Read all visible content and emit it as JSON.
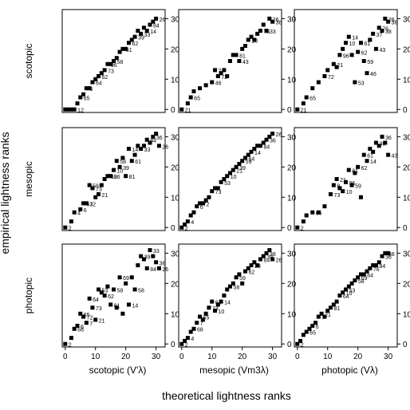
{
  "figure": {
    "ylabel": "empirical lightness ranks",
    "xlabel": "theoretical lightness ranks",
    "row_labels": [
      "scotopic",
      "mesopic",
      "photopic"
    ],
    "col_labels": [
      "scotopic (V'λ)",
      "mesopic (Vm3λ)",
      "photopic (Vλ)"
    ],
    "x_ticks": [
      0,
      10,
      20,
      30
    ],
    "y_ticks": [
      0,
      10,
      20,
      30
    ]
  },
  "chart_data": [
    {
      "type": "scatter",
      "row": "scotopic",
      "col": "scotopic (V'λ)",
      "xlim": [
        -1,
        33
      ],
      "ylim": [
        -1,
        33
      ],
      "grid": false,
      "points": [
        [
          0,
          0,
          ""
        ],
        [
          1,
          0,
          ""
        ],
        [
          2,
          0,
          ""
        ],
        [
          3,
          0,
          "12"
        ],
        [
          4,
          2,
          ""
        ],
        [
          5,
          4,
          "65"
        ],
        [
          6,
          5,
          ""
        ],
        [
          7,
          7,
          "6"
        ],
        [
          8,
          7,
          ""
        ],
        [
          9,
          9,
          "64"
        ],
        [
          10,
          10,
          ""
        ],
        [
          11,
          11,
          "62"
        ],
        [
          12,
          12,
          ""
        ],
        [
          13,
          13,
          "73"
        ],
        [
          14,
          15,
          "96"
        ],
        [
          15,
          15,
          ""
        ],
        [
          16,
          16,
          "58"
        ],
        [
          17,
          17,
          ""
        ],
        [
          18,
          19,
          ""
        ],
        [
          19,
          20,
          "61"
        ],
        [
          20,
          20,
          ""
        ],
        [
          21,
          22,
          "62"
        ],
        [
          22,
          23,
          ""
        ],
        [
          23,
          24,
          "39"
        ],
        [
          24,
          26,
          ""
        ],
        [
          25,
          25,
          "33"
        ],
        [
          26,
          27,
          ""
        ],
        [
          27,
          26,
          "14"
        ],
        [
          28,
          28,
          "84"
        ],
        [
          29,
          29,
          ""
        ],
        [
          30,
          30,
          "26"
        ]
      ]
    },
    {
      "type": "scatter",
      "row": "scotopic",
      "col": "mesopic (Vm3λ)",
      "xlim": [
        -1,
        33
      ],
      "ylim": [
        -1,
        33
      ],
      "grid": false,
      "points": [
        [
          0,
          0,
          "21"
        ],
        [
          2,
          2,
          ""
        ],
        [
          3,
          4,
          "65"
        ],
        [
          4,
          6,
          ""
        ],
        [
          6,
          7,
          ""
        ],
        [
          8,
          8,
          ""
        ],
        [
          10,
          9,
          "46"
        ],
        [
          11,
          13,
          "7"
        ],
        [
          12,
          11,
          "72"
        ],
        [
          13,
          12,
          ""
        ],
        [
          14,
          13,
          ""
        ],
        [
          15,
          11,
          ""
        ],
        [
          16,
          16,
          ""
        ],
        [
          17,
          18,
          ""
        ],
        [
          18,
          18,
          "81"
        ],
        [
          19,
          16,
          "43"
        ],
        [
          20,
          20,
          ""
        ],
        [
          21,
          21,
          ""
        ],
        [
          22,
          23,
          "10"
        ],
        [
          23,
          24,
          ""
        ],
        [
          24,
          23,
          ""
        ],
        [
          25,
          25,
          ""
        ],
        [
          26,
          26,
          "76"
        ],
        [
          27,
          28,
          ""
        ],
        [
          28,
          26,
          "33"
        ],
        [
          29,
          30,
          "26"
        ],
        [
          30,
          29,
          "36"
        ]
      ]
    },
    {
      "type": "scatter",
      "row": "scotopic",
      "col": "photopic (Vλ)",
      "xlim": [
        -1,
        33
      ],
      "ylim": [
        -1,
        33
      ],
      "grid": false,
      "points": [
        [
          0,
          0,
          "21"
        ],
        [
          2,
          2,
          ""
        ],
        [
          3,
          4,
          "65"
        ],
        [
          5,
          7,
          ""
        ],
        [
          7,
          9,
          ""
        ],
        [
          9,
          11,
          "72"
        ],
        [
          10,
          13,
          ""
        ],
        [
          12,
          15,
          "21"
        ],
        [
          13,
          14,
          ""
        ],
        [
          14,
          18,
          "96"
        ],
        [
          15,
          20,
          ""
        ],
        [
          16,
          22,
          "10"
        ],
        [
          17,
          24,
          "14"
        ],
        [
          18,
          18,
          ""
        ],
        [
          19,
          9,
          "53"
        ],
        [
          20,
          19,
          "62"
        ],
        [
          21,
          22,
          "61"
        ],
        [
          22,
          16,
          "59"
        ],
        [
          23,
          12,
          "46"
        ],
        [
          24,
          23,
          ""
        ],
        [
          25,
          25,
          "37"
        ],
        [
          26,
          20,
          "43"
        ],
        [
          27,
          27,
          "76"
        ],
        [
          28,
          26,
          "38"
        ],
        [
          29,
          30,
          "26"
        ],
        [
          30,
          29,
          "36"
        ]
      ]
    },
    {
      "type": "scatter",
      "row": "mesopic",
      "col": "scotopic (V'λ)",
      "xlim": [
        -1,
        33
      ],
      "ylim": [
        -1,
        33
      ],
      "grid": false,
      "points": [
        [
          0,
          0,
          "2"
        ],
        [
          2,
          2,
          ""
        ],
        [
          3,
          5,
          "4"
        ],
        [
          5,
          6,
          "6"
        ],
        [
          6,
          8,
          "53"
        ],
        [
          7,
          8,
          "72"
        ],
        [
          8,
          14,
          "58"
        ],
        [
          9,
          13,
          "73"
        ],
        [
          10,
          10,
          ""
        ],
        [
          11,
          11,
          "21"
        ],
        [
          12,
          14,
          ""
        ],
        [
          13,
          16,
          ""
        ],
        [
          14,
          17,
          "62"
        ],
        [
          15,
          17,
          "96"
        ],
        [
          16,
          19,
          "10"
        ],
        [
          17,
          22,
          "58"
        ],
        [
          18,
          20,
          "39"
        ],
        [
          19,
          23,
          ""
        ],
        [
          20,
          17,
          "81"
        ],
        [
          21,
          26,
          "14"
        ],
        [
          22,
          22,
          "61"
        ],
        [
          23,
          24,
          ""
        ],
        [
          24,
          27,
          ""
        ],
        [
          25,
          26,
          "33"
        ],
        [
          26,
          27,
          ""
        ],
        [
          27,
          29,
          "84"
        ],
        [
          28,
          28,
          ""
        ],
        [
          29,
          30,
          "36"
        ],
        [
          30,
          31,
          ""
        ],
        [
          31,
          27,
          "26"
        ]
      ]
    },
    {
      "type": "scatter",
      "row": "mesopic",
      "col": "mesopic (Vm3λ)",
      "xlim": [
        -1,
        33
      ],
      "ylim": [
        -1,
        33
      ],
      "grid": false,
      "points": [
        [
          0,
          0,
          "2"
        ],
        [
          1,
          1,
          ""
        ],
        [
          2,
          2,
          "4"
        ],
        [
          3,
          4,
          ""
        ],
        [
          4,
          5,
          ""
        ],
        [
          5,
          7,
          "6"
        ],
        [
          6,
          8,
          "72"
        ],
        [
          7,
          8,
          ""
        ],
        [
          8,
          9,
          ""
        ],
        [
          9,
          10,
          ""
        ],
        [
          10,
          12,
          "73"
        ],
        [
          11,
          13,
          ""
        ],
        [
          12,
          13,
          ""
        ],
        [
          13,
          15,
          "53"
        ],
        [
          14,
          16,
          ""
        ],
        [
          15,
          17,
          "10"
        ],
        [
          16,
          18,
          ""
        ],
        [
          17,
          19,
          "21"
        ],
        [
          18,
          20,
          "39"
        ],
        [
          19,
          21,
          ""
        ],
        [
          20,
          22,
          "59"
        ],
        [
          21,
          23,
          "64"
        ],
        [
          22,
          24,
          ""
        ],
        [
          23,
          25,
          "14"
        ],
        [
          24,
          26,
          ""
        ],
        [
          25,
          27,
          ""
        ],
        [
          26,
          27,
          "84"
        ],
        [
          27,
          28,
          ""
        ],
        [
          28,
          29,
          "36"
        ],
        [
          29,
          30,
          ""
        ],
        [
          30,
          31,
          "26"
        ]
      ]
    },
    {
      "type": "scatter",
      "row": "mesopic",
      "col": "photopic (Vλ)",
      "xlim": [
        -1,
        33
      ],
      "ylim": [
        -1,
        33
      ],
      "grid": false,
      "points": [
        [
          0,
          0,
          "2"
        ],
        [
          2,
          2,
          ""
        ],
        [
          3,
          4,
          ""
        ],
        [
          5,
          5,
          "65"
        ],
        [
          7,
          5,
          ""
        ],
        [
          9,
          7,
          ""
        ],
        [
          11,
          11,
          "73"
        ],
        [
          12,
          14,
          "8"
        ],
        [
          13,
          16,
          "21"
        ],
        [
          14,
          13,
          ""
        ],
        [
          15,
          12,
          "10"
        ],
        [
          16,
          15,
          "96"
        ],
        [
          17,
          19,
          "81"
        ],
        [
          18,
          14,
          "59"
        ],
        [
          19,
          18,
          ""
        ],
        [
          20,
          20,
          "62"
        ],
        [
          21,
          10,
          ""
        ],
        [
          22,
          24,
          "61"
        ],
        [
          23,
          22,
          "14"
        ],
        [
          24,
          26,
          ""
        ],
        [
          25,
          25,
          ""
        ],
        [
          26,
          28,
          "38"
        ],
        [
          27,
          27,
          ""
        ],
        [
          28,
          30,
          "36"
        ],
        [
          29,
          28,
          ""
        ],
        [
          30,
          24,
          "43"
        ]
      ]
    },
    {
      "type": "scatter",
      "row": "photopic",
      "col": "scotopic (V'λ)",
      "xlim": [
        -1,
        33
      ],
      "ylim": [
        -1,
        33
      ],
      "grid": false,
      "points": [
        [
          0,
          0,
          "2"
        ],
        [
          2,
          2,
          ""
        ],
        [
          3,
          5,
          "68"
        ],
        [
          4,
          6,
          "6"
        ],
        [
          5,
          10,
          "65"
        ],
        [
          6,
          9,
          "72"
        ],
        [
          7,
          7,
          "7"
        ],
        [
          8,
          15,
          "64"
        ],
        [
          9,
          12,
          "73"
        ],
        [
          10,
          8,
          "21"
        ],
        [
          11,
          18,
          "53"
        ],
        [
          12,
          17,
          ""
        ],
        [
          13,
          16,
          "62"
        ],
        [
          14,
          19,
          ""
        ],
        [
          15,
          13,
          "81"
        ],
        [
          16,
          18,
          "58"
        ],
        [
          17,
          12,
          ""
        ],
        [
          18,
          22,
          "69"
        ],
        [
          19,
          10,
          ""
        ],
        [
          20,
          20,
          ""
        ],
        [
          21,
          13,
          "14"
        ],
        [
          22,
          22,
          ""
        ],
        [
          23,
          18,
          "58"
        ],
        [
          24,
          26,
          ""
        ],
        [
          25,
          29,
          "39"
        ],
        [
          26,
          28,
          ""
        ],
        [
          27,
          25,
          "84"
        ],
        [
          28,
          31,
          "33"
        ],
        [
          29,
          29,
          ""
        ],
        [
          30,
          27,
          "36"
        ],
        [
          31,
          25,
          "26"
        ]
      ]
    },
    {
      "type": "scatter",
      "row": "photopic",
      "col": "mesopic (Vm3λ)",
      "xlim": [
        -1,
        33
      ],
      "ylim": [
        -1,
        33
      ],
      "grid": false,
      "points": [
        [
          0,
          0,
          "2"
        ],
        [
          1,
          1,
          ""
        ],
        [
          2,
          2,
          "4"
        ],
        [
          3,
          4,
          ""
        ],
        [
          4,
          5,
          "68"
        ],
        [
          5,
          7,
          "7"
        ],
        [
          6,
          9,
          "65"
        ],
        [
          7,
          8,
          ""
        ],
        [
          8,
          10,
          ""
        ],
        [
          9,
          12,
          "73"
        ],
        [
          10,
          14,
          "64"
        ],
        [
          11,
          11,
          "10"
        ],
        [
          12,
          13,
          ""
        ],
        [
          13,
          14,
          "14"
        ],
        [
          14,
          16,
          ""
        ],
        [
          15,
          18,
          ""
        ],
        [
          16,
          19,
          "58"
        ],
        [
          17,
          20,
          ""
        ],
        [
          18,
          22,
          "59"
        ],
        [
          19,
          23,
          ""
        ],
        [
          20,
          20,
          ""
        ],
        [
          21,
          24,
          "62"
        ],
        [
          22,
          25,
          ""
        ],
        [
          23,
          26,
          "33"
        ],
        [
          24,
          27,
          ""
        ],
        [
          25,
          26,
          ""
        ],
        [
          26,
          28,
          "84"
        ],
        [
          27,
          29,
          "39"
        ],
        [
          28,
          30,
          "38"
        ],
        [
          29,
          31,
          ""
        ],
        [
          30,
          28,
          "26"
        ]
      ]
    },
    {
      "type": "scatter",
      "row": "photopic",
      "col": "photopic (Vλ)",
      "xlim": [
        -1,
        33
      ],
      "ylim": [
        -1,
        33
      ],
      "grid": false,
      "points": [
        [
          0,
          0,
          "2"
        ],
        [
          1,
          1,
          ""
        ],
        [
          2,
          3,
          ""
        ],
        [
          3,
          4,
          "65"
        ],
        [
          4,
          5,
          ""
        ],
        [
          5,
          6,
          "6"
        ],
        [
          6,
          7,
          ""
        ],
        [
          7,
          9,
          "7"
        ],
        [
          8,
          10,
          "21"
        ],
        [
          9,
          9,
          ""
        ],
        [
          10,
          11,
          ""
        ],
        [
          11,
          12,
          "81"
        ],
        [
          12,
          13,
          ""
        ],
        [
          13,
          14,
          ""
        ],
        [
          14,
          16,
          "64"
        ],
        [
          15,
          17,
          "10"
        ],
        [
          16,
          18,
          "53"
        ],
        [
          17,
          19,
          ""
        ],
        [
          18,
          20,
          ""
        ],
        [
          19,
          21,
          "58"
        ],
        [
          20,
          22,
          "69"
        ],
        [
          21,
          23,
          ""
        ],
        [
          22,
          23,
          "64"
        ],
        [
          23,
          24,
          ""
        ],
        [
          24,
          25,
          "76"
        ],
        [
          25,
          26,
          ""
        ],
        [
          26,
          26,
          "84"
        ],
        [
          27,
          27,
          ""
        ],
        [
          28,
          29,
          "36"
        ],
        [
          29,
          30,
          "38"
        ],
        [
          30,
          30,
          ""
        ]
      ]
    }
  ]
}
